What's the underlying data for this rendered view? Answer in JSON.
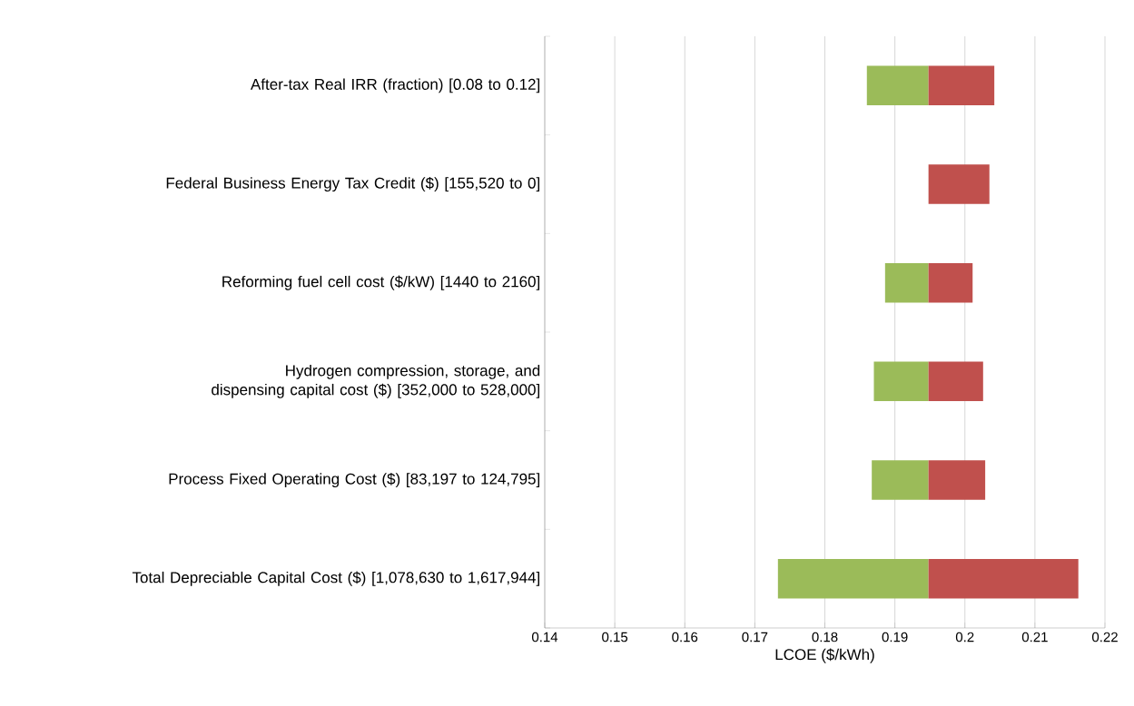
{
  "chart_data": {
    "type": "bar",
    "orientation": "horizontal",
    "xlabel": "LCOE ($/kWh)",
    "categories": [
      "After-tax Real IRR (fraction) [0.08 to 0.12]",
      "Federal Business Energy Tax Credit ($) [155,520 to 0]",
      "Reforming fuel cell cost ($/kW) [1440 to 2160]",
      "Hydrogen compression, storage, and dispensing capital cost ($) [352,000 to 528,000]",
      "Process Fixed Operating Cost ($) [83,197 to 124,795]",
      "Total Depreciable Capital Cost ($) [1,078,630 to 1,617,944]"
    ],
    "series": [
      {
        "color": "#9bbb59",
        "base": [
          0.186,
          null,
          0.1886,
          0.187,
          0.1867,
          0.1733
        ],
        "values": [
          0.0088,
          null,
          0.0062,
          0.0078,
          0.0081,
          0.0215
        ]
      },
      {
        "color": "#c0504d",
        "base": [
          0.1948,
          0.1948,
          0.1948,
          0.1948,
          0.1948,
          0.1948
        ],
        "values": [
          0.0094,
          0.0087,
          0.0063,
          0.0078,
          0.0081,
          0.0214
        ]
      }
    ],
    "xlim": [
      0.14,
      0.22
    ],
    "xticks": [
      0.14,
      0.15,
      0.16,
      0.17,
      0.18,
      0.19,
      0.2,
      0.21,
      0.22
    ],
    "grid": "x"
  }
}
